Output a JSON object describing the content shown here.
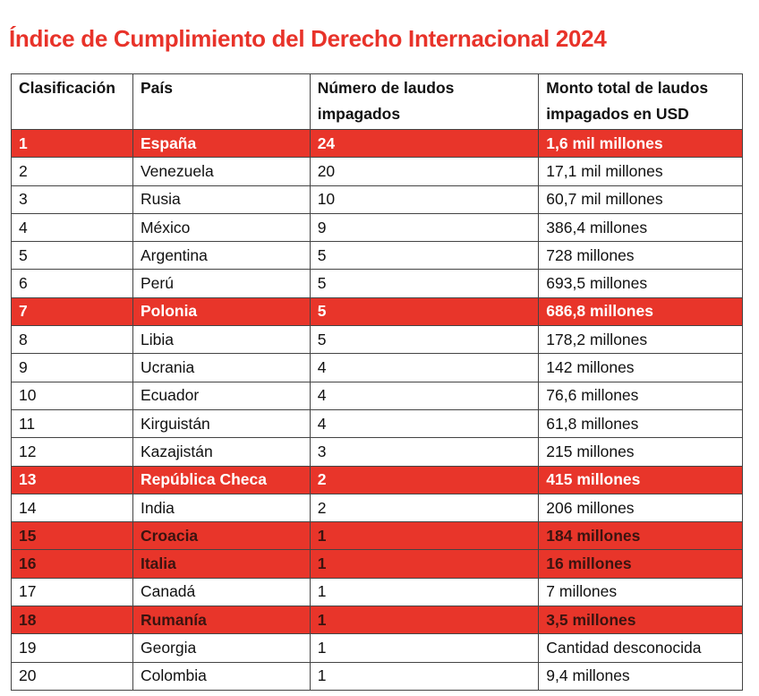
{
  "header": {
    "title": "Índice de Cumplimiento del Derecho Internacional 2024",
    "title_color": "#e8332a"
  },
  "table": {
    "columns": [
      "Clasificación",
      "País",
      "Número de laudos impagados",
      "Monto total de laudos impagados en USD"
    ],
    "rows": [
      {
        "cells": [
          "1",
          "España",
          "24",
          "1,6 mil millones"
        ],
        "fill": "#e8352a",
        "text_color": "#ffffff"
      },
      {
        "cells": [
          "2",
          "Venezuela",
          "20",
          "17,1 mil millones"
        ]
      },
      {
        "cells": [
          "3",
          "Rusia",
          "10",
          "60,7 mil millones"
        ]
      },
      {
        "cells": [
          "4",
          "México",
          "9",
          "386,4 millones"
        ]
      },
      {
        "cells": [
          "5",
          "Argentina",
          "5",
          "728 millones"
        ]
      },
      {
        "cells": [
          "6",
          "Perú",
          "5",
          "693,5 millones"
        ]
      },
      {
        "cells": [
          "7",
          "Polonia",
          "5",
          "686,8 millones"
        ],
        "fill": "#e8352a",
        "text_color": "#ffffff"
      },
      {
        "cells": [
          "8",
          "Libia",
          "5",
          "178,2 millones"
        ]
      },
      {
        "cells": [
          "9",
          "Ucrania",
          "4",
          "142 millones"
        ]
      },
      {
        "cells": [
          "10",
          "Ecuador",
          "4",
          "76,6 millones"
        ]
      },
      {
        "cells": [
          "11",
          "Kirguistán",
          "4",
          "61,8 millones"
        ]
      },
      {
        "cells": [
          "12",
          "Kazajistán",
          "3",
          "215 millones"
        ]
      },
      {
        "cells": [
          "13",
          "República Checa",
          "2",
          "415 millones"
        ],
        "fill": "#e8352a",
        "text_color": "#ffffff"
      },
      {
        "cells": [
          "14",
          "India",
          "2",
          "206 millones"
        ]
      },
      {
        "cells": [
          "15",
          "Croacia",
          "1",
          "184 millones"
        ],
        "fill": "#e8352a",
        "text_color": "#3a1410"
      },
      {
        "cells": [
          "16",
          "Italia",
          "1",
          "16 millones"
        ],
        "fill": "#e8352a",
        "text_color": "#3a1410"
      },
      {
        "cells": [
          "17",
          "Canadá",
          "1",
          "7 millones"
        ]
      },
      {
        "cells": [
          "18",
          "Rumanía",
          "1",
          "3,5 millones"
        ],
        "fill": "#e8352a",
        "text_color": "#3a1410"
      },
      {
        "cells": [
          "19",
          "Georgia",
          "1",
          "Cantidad desconocida"
        ]
      },
      {
        "cells": [
          "20",
          "Colombia",
          "1",
          "9,4 millones"
        ]
      }
    ]
  }
}
